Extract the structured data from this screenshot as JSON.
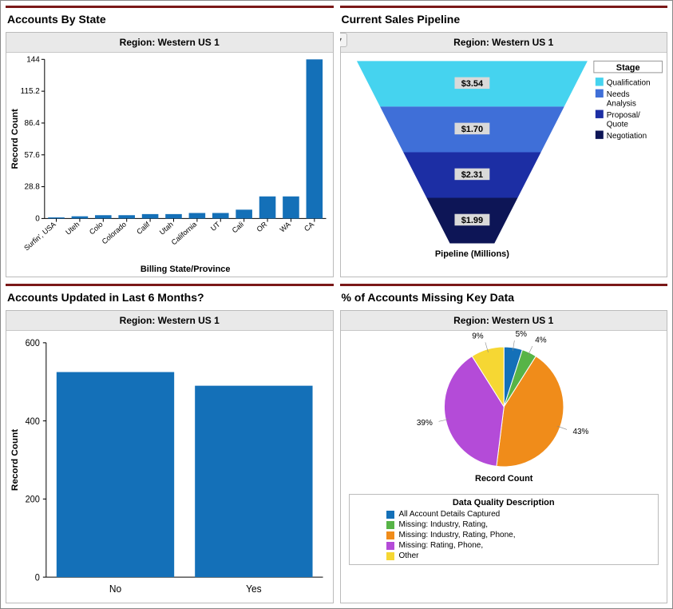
{
  "panels": {
    "accounts_by_state": {
      "title": "Accounts By State",
      "subheader": "Region: Western US 1",
      "type": "bar",
      "x_axis_label": "Billing State/Province",
      "y_axis_label": "Record Count",
      "categories": [
        "Surfin', USA",
        "Uteh",
        "Colo",
        "Colorado",
        "Calif",
        "Utah",
        "California",
        "UT",
        "Cali",
        "OR",
        "WA",
        "CA"
      ],
      "values": [
        1,
        2,
        3,
        3,
        4,
        4,
        5,
        5,
        8,
        20,
        20,
        144
      ],
      "bar_color": "#1470b8",
      "y_ticks": [
        0,
        28.8,
        57.6,
        86.4,
        115.2,
        144
      ],
      "background_color": "#ffffff",
      "grid_color": "#000000",
      "label_fontsize": 11,
      "tick_fontsize": 9
    },
    "sales_pipeline": {
      "title": "Current Sales Pipeline",
      "subheader": "Region: Western US 1",
      "type": "funnel",
      "bottom_label": "Pipeline (Millions)",
      "legend_title": "Stage",
      "stages": [
        {
          "label": "Qualification",
          "value": "$3.54",
          "color": "#45d3ef"
        },
        {
          "label": "Needs Analysis",
          "value": "$1.70",
          "color": "#3f6fd8"
        },
        {
          "label": "Proposal/ Quote",
          "value": "$2.31",
          "color": "#1c2ea4"
        },
        {
          "label": "Negotiation",
          "value": "$1.99",
          "color": "#0d1556"
        }
      ],
      "value_label_bg": "#d9d9d9",
      "background_color": "#ffffff",
      "label_fontsize": 11
    },
    "accounts_updated": {
      "title": "Accounts Updated in Last 6 Months?",
      "subheader": "Region: Western US 1",
      "type": "bar",
      "y_axis_label": "Record Count",
      "categories": [
        "No",
        "Yes"
      ],
      "values": [
        525,
        490
      ],
      "bar_color": "#1470b8",
      "y_ticks": [
        0,
        200,
        400,
        600
      ],
      "background_color": "#ffffff",
      "label_fontsize": 11,
      "tick_fontsize": 11
    },
    "missing_key_data": {
      "title": "% of Accounts Missing Key Data",
      "subheader": "Region: Western US 1",
      "type": "pie",
      "bottom_label": "Record Count",
      "legend_title": "Data Quality Description",
      "slices": [
        {
          "label": "All Account Details Captured",
          "pct": 5,
          "color": "#1470b8"
        },
        {
          "label": "Missing: Industry, Rating,",
          "pct": 4,
          "color": "#57b447"
        },
        {
          "label": "Missing: Industry, Rating, Phone,",
          "pct": 43,
          "color": "#f08c1a"
        },
        {
          "label": "Missing: Rating, Phone,",
          "pct": 39,
          "color": "#b44bd8"
        },
        {
          "label": "Other",
          "pct": 9,
          "color": "#f6d733"
        }
      ],
      "background_color": "#ffffff",
      "label_fontsize": 11
    }
  }
}
